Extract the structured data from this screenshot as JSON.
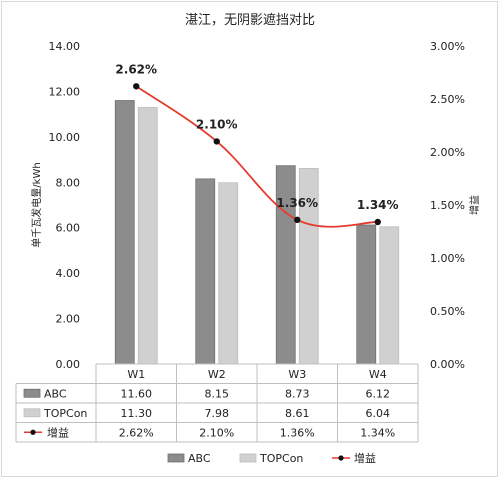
{
  "chart_data": {
    "type": "bar",
    "title": "湛江，无阴影遮挡对比",
    "ylabel": "单千瓦发电量/kWh",
    "y2label": "增益",
    "ylim": [
      0,
      14
    ],
    "yticks": [
      "0.00",
      "2.00",
      "4.00",
      "6.00",
      "8.00",
      "10.00",
      "12.00",
      "14.00"
    ],
    "y2lim": [
      0,
      3
    ],
    "y2ticks": [
      "0.00%",
      "0.50%",
      "1.00%",
      "1.50%",
      "2.00%",
      "2.50%",
      "3.00%"
    ],
    "grid": false,
    "legend_position": "bottom",
    "categories": [
      "W1",
      "W2",
      "W3",
      "W4"
    ],
    "series": [
      {
        "name": "ABC",
        "kind": "bar",
        "color": "#8c8c8c",
        "values": [
          11.6,
          8.15,
          8.73,
          6.12
        ],
        "labels": [
          "11.60",
          "8.15",
          "8.73",
          "6.12"
        ]
      },
      {
        "name": "TOPCon",
        "kind": "bar",
        "color": "#d0d0d0",
        "values": [
          11.3,
          7.98,
          8.61,
          6.04
        ],
        "labels": [
          "11.30",
          "7.98",
          "8.61",
          "6.04"
        ]
      },
      {
        "name": "增益",
        "kind": "line",
        "axis": "right",
        "color": "#e63a2e",
        "marker_color": "#111111",
        "values": [
          2.62,
          2.1,
          1.36,
          1.34
        ],
        "labels": [
          "2.62%",
          "2.10%",
          "1.36%",
          "1.34%"
        ]
      }
    ]
  }
}
